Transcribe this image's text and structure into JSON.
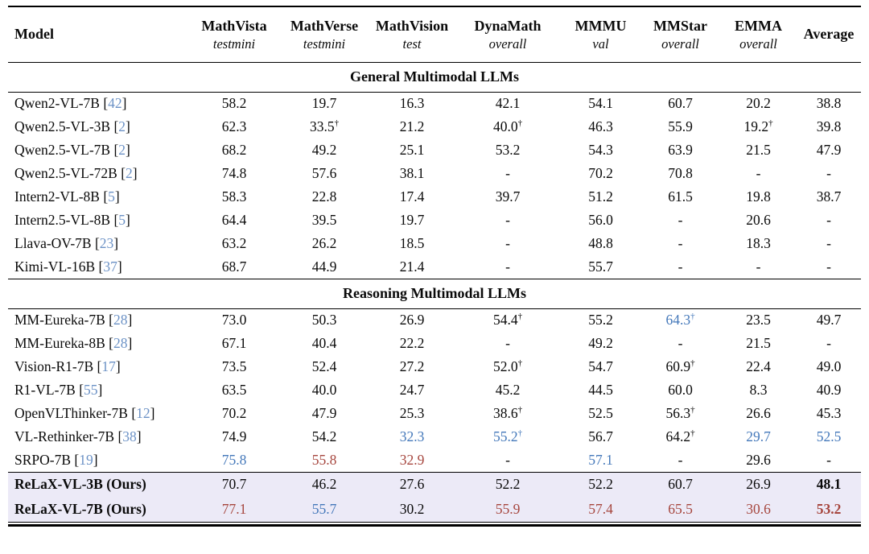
{
  "colors": {
    "best": "#a6463e",
    "second": "#4478ba",
    "citation": "#6c92c6",
    "highlight_bg": "#eceaf7",
    "rule": "#000000",
    "text": "#0a0a0a"
  },
  "table": {
    "dagger": "†",
    "header": {
      "model_label": "Model",
      "average_label": "Average",
      "benchmarks": [
        {
          "name": "MathVista",
          "split": "testmini"
        },
        {
          "name": "MathVerse",
          "split": "testmini"
        },
        {
          "name": "MathVision",
          "split": "test"
        },
        {
          "name": "DynaMath",
          "split": "overall"
        },
        {
          "name": "MMMU",
          "split": "val"
        },
        {
          "name": "MMStar",
          "split": "overall"
        },
        {
          "name": "EMMA",
          "split": "overall"
        }
      ]
    },
    "sections": [
      {
        "title": "General Multimodal LLMs",
        "highlight": false,
        "rows": [
          {
            "model": "Qwen2-VL-7B",
            "cite": "42",
            "values": [
              "58.2",
              "19.7",
              "16.3",
              "42.1",
              "54.1",
              "60.7",
              "20.2",
              "38.8"
            ]
          },
          {
            "model": "Qwen2.5-VL-3B",
            "cite": "2",
            "values": [
              "62.3",
              {
                "v": "33.5",
                "d": 1
              },
              "21.2",
              {
                "v": "40.0",
                "d": 1
              },
              "46.3",
              "55.9",
              {
                "v": "19.2",
                "d": 1
              },
              "39.8"
            ]
          },
          {
            "model": "Qwen2.5-VL-7B",
            "cite": "2",
            "values": [
              "68.2",
              "49.2",
              "25.1",
              "53.2",
              "54.3",
              "63.9",
              "21.5",
              "47.9"
            ]
          },
          {
            "model": "Qwen2.5-VL-72B",
            "cite": "2",
            "values": [
              "74.8",
              "57.6",
              "38.1",
              "-",
              "70.2",
              "70.8",
              "-",
              "-"
            ]
          },
          {
            "model": "Intern2-VL-8B",
            "cite": "5",
            "values": [
              "58.3",
              "22.8",
              "17.4",
              "39.7",
              "51.2",
              "61.5",
              "19.8",
              "38.7"
            ]
          },
          {
            "model": "Intern2.5-VL-8B",
            "cite": "5",
            "values": [
              "64.4",
              "39.5",
              "19.7",
              "-",
              "56.0",
              "-",
              "20.6",
              "-"
            ]
          },
          {
            "model": "Llava-OV-7B",
            "cite": "23",
            "values": [
              "63.2",
              "26.2",
              "18.5",
              "-",
              "48.8",
              "-",
              "18.3",
              "-"
            ]
          },
          {
            "model": "Kimi-VL-16B",
            "cite": "37",
            "values": [
              "68.7",
              "44.9",
              "21.4",
              "-",
              "55.7",
              "-",
              "-",
              "-"
            ]
          }
        ]
      },
      {
        "title": "Reasoning Multimodal LLMs",
        "highlight": false,
        "rows": [
          {
            "model": "MM-Eureka-7B",
            "cite": "28",
            "values": [
              "73.0",
              "50.3",
              "26.9",
              {
                "v": "54.4",
                "d": 1
              },
              "55.2",
              {
                "v": "64.3",
                "d": 1,
                "c": "second"
              },
              "23.5",
              "49.7"
            ]
          },
          {
            "model": "MM-Eureka-8B",
            "cite": "28",
            "values": [
              "67.1",
              "40.4",
              "22.2",
              "-",
              "49.2",
              "-",
              "21.5",
              "-"
            ]
          },
          {
            "model": "Vision-R1-7B",
            "cite": "17",
            "values": [
              "73.5",
              "52.4",
              "27.2",
              {
                "v": "52.0",
                "d": 1
              },
              "54.7",
              {
                "v": "60.9",
                "d": 1
              },
              "22.4",
              "49.0"
            ]
          },
          {
            "model": "R1-VL-7B",
            "cite": "55",
            "values": [
              "63.5",
              "40.0",
              "24.7",
              "45.2",
              "44.5",
              "60.0",
              "8.3",
              "40.9"
            ]
          },
          {
            "model": "OpenVLThinker-7B",
            "cite": "12",
            "values": [
              "70.2",
              "47.9",
              "25.3",
              {
                "v": "38.6",
                "d": 1
              },
              "52.5",
              {
                "v": "56.3",
                "d": 1
              },
              "26.6",
              "45.3"
            ]
          },
          {
            "model": "VL-Rethinker-7B",
            "cite": "38",
            "values": [
              "74.9",
              "54.2",
              {
                "v": "32.3",
                "c": "second"
              },
              {
                "v": "55.2",
                "d": 1,
                "c": "second"
              },
              "56.7",
              {
                "v": "64.2",
                "d": 1
              },
              {
                "v": "29.7",
                "c": "second"
              },
              {
                "v": "52.5",
                "c": "second"
              }
            ]
          },
          {
            "model": "SRPO-7B",
            "cite": "19",
            "values": [
              {
                "v": "75.8",
                "c": "second"
              },
              {
                "v": "55.8",
                "c": "best"
              },
              {
                "v": "32.9",
                "c": "best"
              },
              "-",
              {
                "v": "57.1",
                "c": "second"
              },
              "-",
              "29.6",
              "-"
            ]
          }
        ]
      },
      {
        "title": null,
        "highlight": true,
        "rows": [
          {
            "model": "ReLaX-VL-3B (Ours)",
            "cite": null,
            "values": [
              "70.7",
              "46.2",
              "27.6",
              "52.2",
              "52.2",
              "60.7",
              "26.9",
              {
                "v": "48.1",
                "b": 1
              }
            ]
          },
          {
            "model": "ReLaX-VL-7B (Ours)",
            "cite": null,
            "values": [
              {
                "v": "77.1",
                "c": "best"
              },
              {
                "v": "55.7",
                "c": "second"
              },
              "30.2",
              {
                "v": "55.9",
                "c": "best"
              },
              {
                "v": "57.4",
                "c": "best"
              },
              {
                "v": "65.5",
                "c": "best"
              },
              {
                "v": "30.6",
                "c": "best"
              },
              {
                "v": "53.2",
                "c": "best",
                "b": 1
              }
            ]
          }
        ]
      }
    ]
  }
}
